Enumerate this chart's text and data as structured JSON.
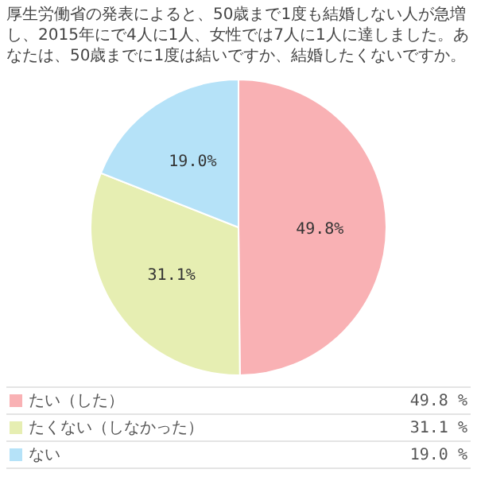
{
  "chart_data": {
    "type": "pie",
    "title": "厚生労働省の発表によると、50歳まで1度も結婚しない人が急増し、2015年にで4人に1人、女性では7人に1人に達しました。あなたは、50歳までに1度は結いですか、結婚したくないですか。",
    "categories": [
      "たい（した）",
      "たくない（しなかった）",
      "ない"
    ],
    "values": [
      49.8,
      31.1,
      19.0
    ],
    "colors": [
      "#f9b1b4",
      "#e6eeb2",
      "#b5e2f8"
    ],
    "value_labels": [
      "49.8%",
      "31.1%",
      "19.0%"
    ],
    "annotations": [
      "49.8 %",
      "31.1 %",
      "19.0 %"
    ],
    "legend": "bottom"
  }
}
